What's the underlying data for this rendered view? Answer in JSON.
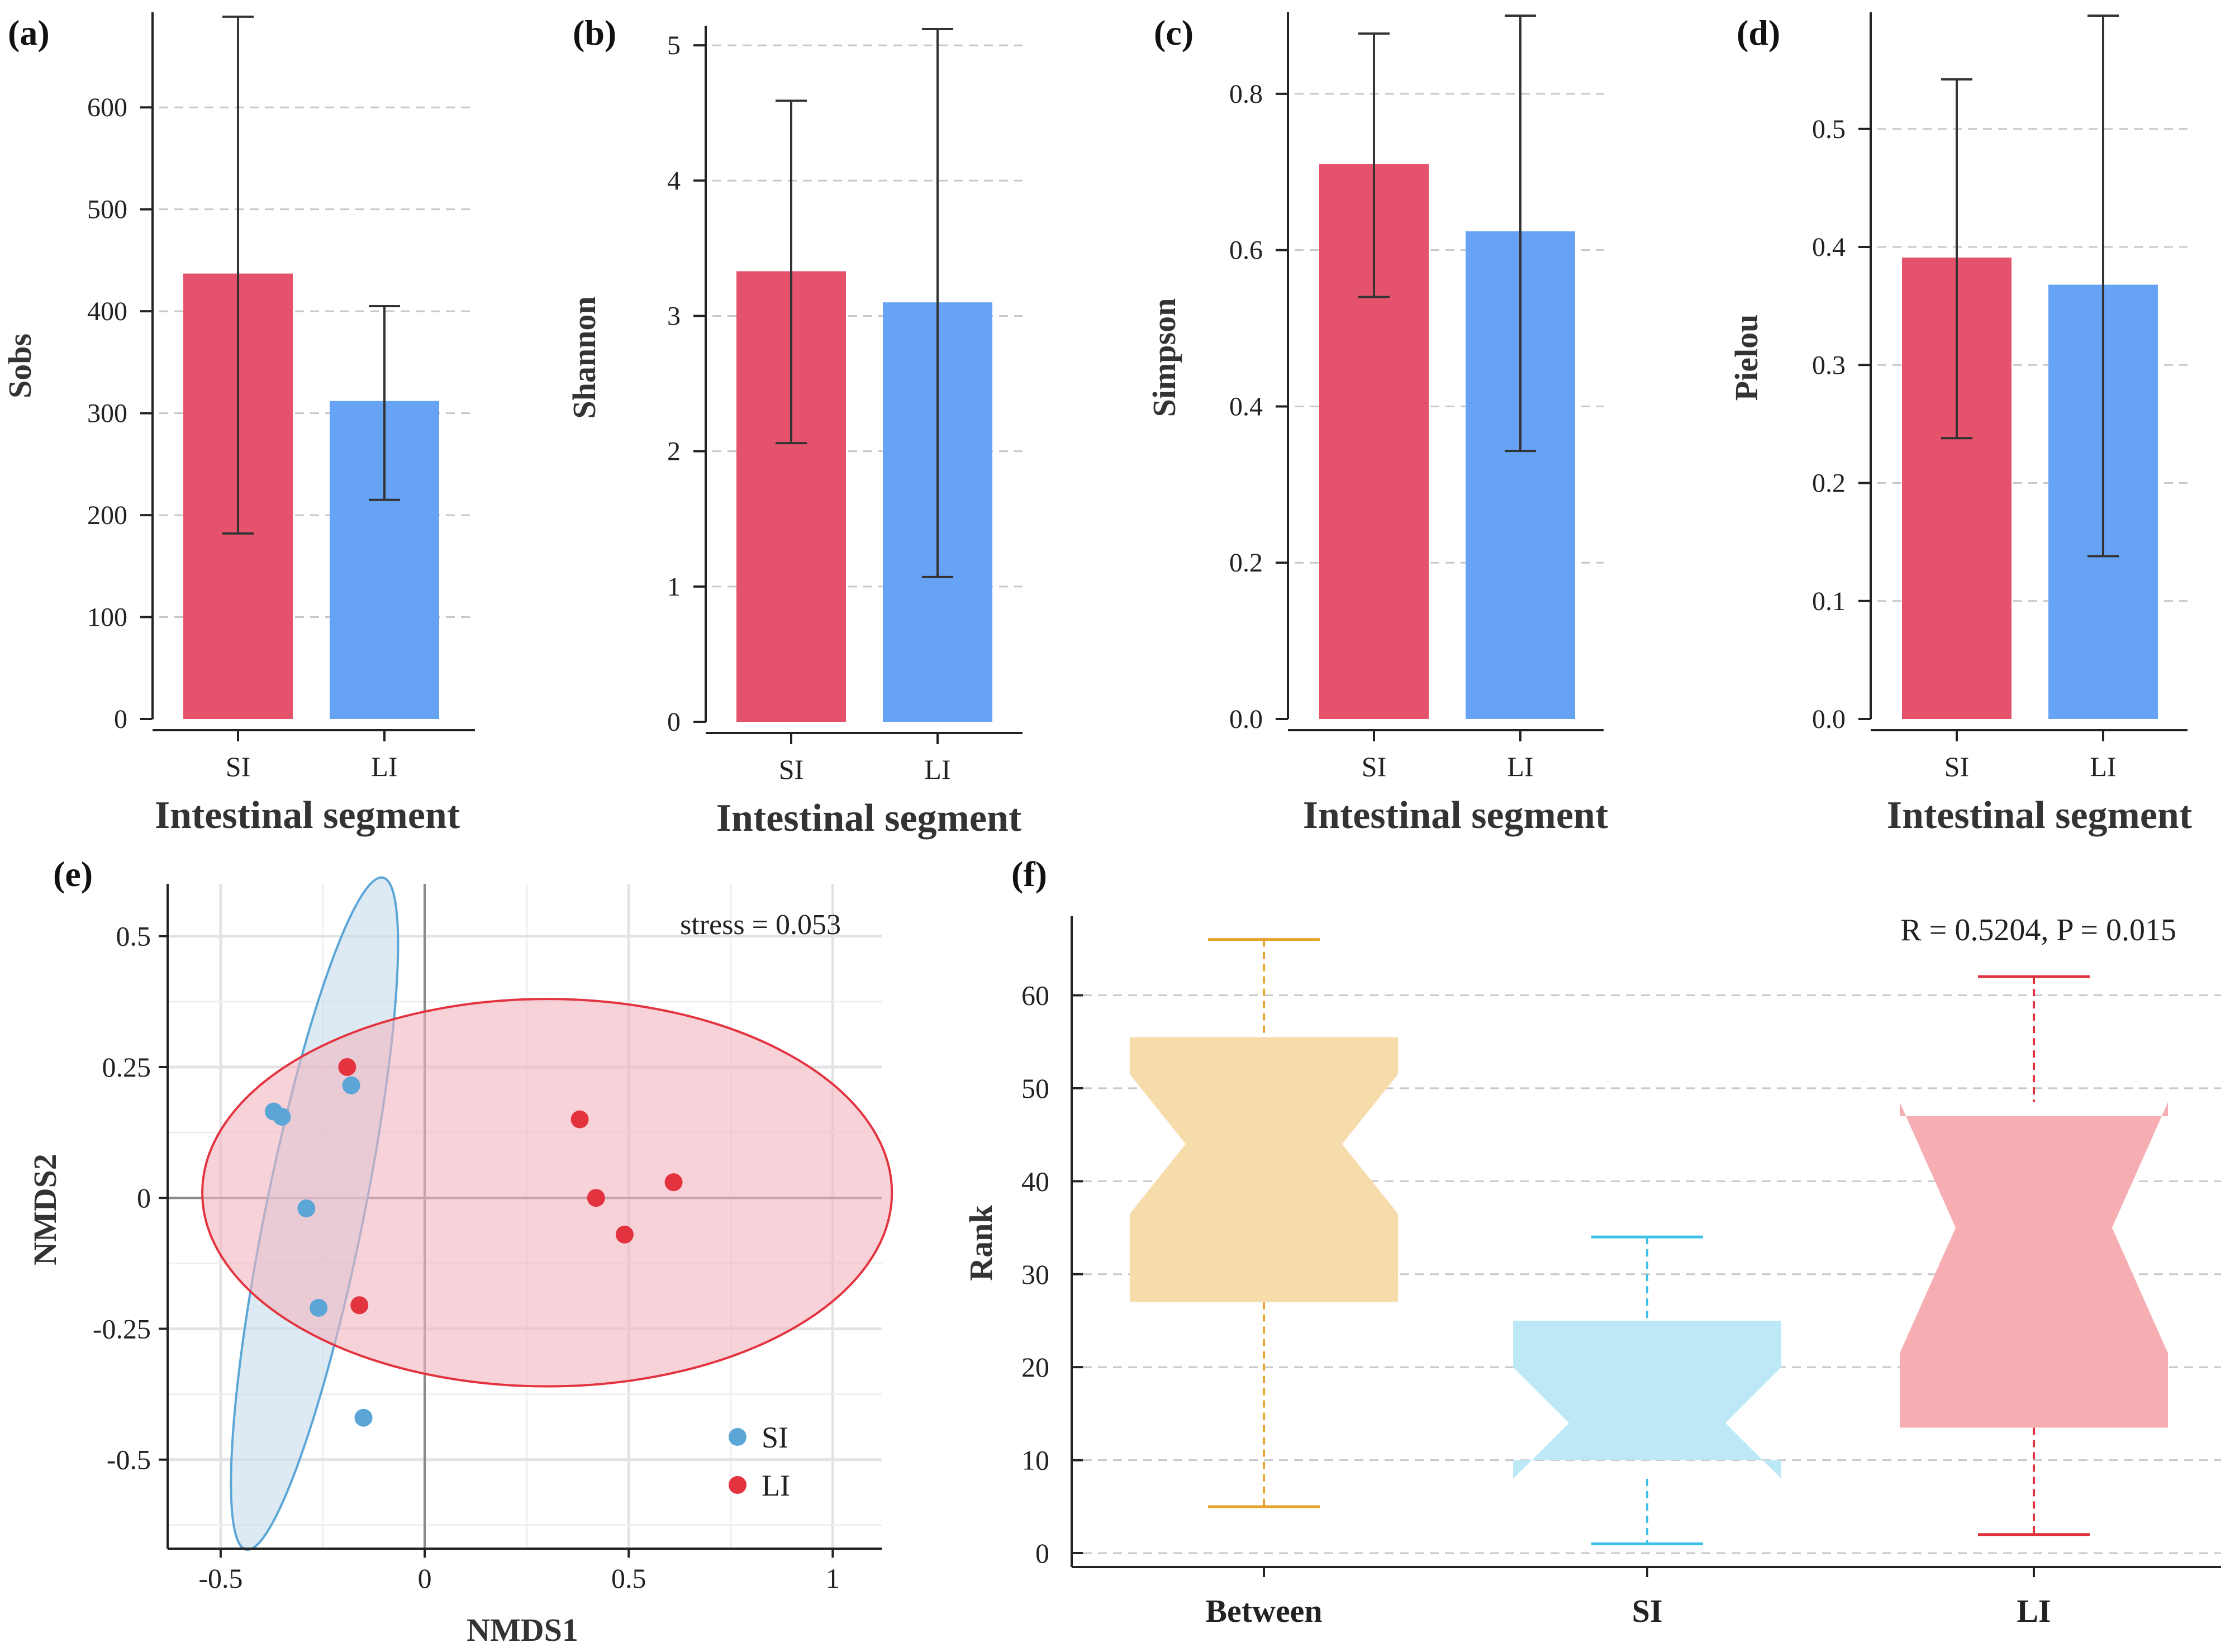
{
  "figure": {
    "panels": {
      "a": {
        "label": "(a)"
      },
      "b": {
        "label": "(b)"
      },
      "c": {
        "label": "(c)"
      },
      "d": {
        "label": "(d)"
      },
      "e": {
        "label": "(e)"
      },
      "f": {
        "label": "(f)"
      }
    }
  },
  "colors": {
    "si_bar": "#e5526b",
    "li_bar": "#66a3f5",
    "si_point": "#5ba6d6",
    "li_point": "#e3333f",
    "si_ellipse_fill": "#c6dcec",
    "li_ellipse_fill": "#f2b6bf",
    "box_between": "#f6dcaa",
    "box_between_line": "#e7a42e",
    "box_si": "#bde9f7",
    "box_si_line": "#3cc0e8",
    "box_li": "#f6aeb3",
    "box_li_line": "#e0323d"
  },
  "chart_data": [
    {
      "id": "a",
      "type": "bar",
      "title": "",
      "categories": [
        "SI",
        "LI"
      ],
      "values": [
        437,
        312
      ],
      "error_high": [
        689,
        405
      ],
      "error_low": [
        182,
        215
      ],
      "xlabel": "Intestinal segment",
      "ylabel": "Sobs",
      "ylim": [
        0,
        690
      ],
      "yticks": [
        0,
        100,
        200,
        300,
        400,
        500,
        600
      ],
      "ytick_labels": [
        "0",
        "100",
        "200",
        "300",
        "400",
        "500",
        "600"
      ],
      "grid": true
    },
    {
      "id": "b",
      "type": "bar",
      "title": "",
      "categories": [
        "SI",
        "LI"
      ],
      "values": [
        3.33,
        3.1
      ],
      "error_high": [
        4.59,
        5.12
      ],
      "error_low": [
        2.06,
        1.07
      ],
      "xlabel": "Intestinal segment",
      "ylabel": "Shannon",
      "ylim": [
        0,
        5.12
      ],
      "yticks": [
        0,
        1,
        2,
        3,
        4,
        5
      ],
      "ytick_labels": [
        "0",
        "1",
        "2",
        "3",
        "4",
        "5"
      ],
      "grid": true
    },
    {
      "id": "c",
      "type": "bar",
      "title": "",
      "categories": [
        "SI",
        "LI"
      ],
      "values": [
        0.71,
        0.624
      ],
      "error_high": [
        0.877,
        0.9
      ],
      "error_low": [
        0.54,
        0.343
      ],
      "xlabel": "Intestinal segment",
      "ylabel": "Simpson",
      "ylim": [
        0,
        0.9
      ],
      "yticks": [
        0,
        0.2,
        0.4,
        0.6,
        0.8
      ],
      "ytick_labels": [
        "0.0",
        "0.2",
        "0.4",
        "0.6",
        "0.8"
      ],
      "grid": true
    },
    {
      "id": "d",
      "type": "bar",
      "title": "",
      "categories": [
        "SI",
        "LI"
      ],
      "values": [
        0.391,
        0.368
      ],
      "error_high": [
        0.542,
        0.596
      ],
      "error_low": [
        0.238,
        0.138
      ],
      "xlabel": "Intestinal segment",
      "ylabel": "Pielou",
      "ylim": [
        0,
        0.596
      ],
      "yticks": [
        0,
        0.1,
        0.2,
        0.3,
        0.4,
        0.5
      ],
      "ytick_labels": [
        "0.0",
        "0.1",
        "0.2",
        "0.3",
        "0.4",
        "0.5"
      ],
      "grid": true
    },
    {
      "id": "e",
      "type": "scatter",
      "title": "",
      "xlabel": "NMDS1",
      "ylabel": "NMDS2",
      "xlim": [
        -0.63,
        1.12
      ],
      "ylim": [
        -0.67,
        0.6
      ],
      "xticks": [
        -0.5,
        0,
        0.5,
        1
      ],
      "xtick_labels": [
        "-0.5",
        "0",
        "0.5",
        "1"
      ],
      "yticks": [
        -0.5,
        -0.25,
        0,
        0.25,
        0.5
      ],
      "ytick_labels": [
        "-0.5",
        "-0.25",
        "0",
        "0.25",
        "0.5"
      ],
      "annotation": "stress = 0.053",
      "series": [
        {
          "name": "SI",
          "x": [
            -0.37,
            -0.35,
            -0.18,
            -0.29,
            -0.26,
            -0.15
          ],
          "y": [
            0.165,
            0.155,
            0.215,
            -0.02,
            -0.21,
            -0.42
          ]
        },
        {
          "name": "LI",
          "x": [
            -0.19,
            0.38,
            0.42,
            0.61,
            0.49,
            -0.16
          ],
          "y": [
            0.25,
            0.15,
            0.0,
            0.03,
            -0.07,
            -0.205
          ]
        }
      ],
      "ellipses": [
        {
          "name": "SI",
          "cx": -0.27,
          "cy": -0.03,
          "rx": 0.655,
          "ry": 0.12,
          "angle_deg": 78.5
        },
        {
          "name": "LI",
          "cx": 0.3,
          "cy": 0.01,
          "rx": 0.845,
          "ry": 0.37,
          "angle_deg": 0
        }
      ],
      "legend": [
        "SI",
        "LI"
      ],
      "legend_position": "bottom-right",
      "grid": true
    },
    {
      "id": "f",
      "type": "box",
      "title": "",
      "categories": [
        "Between",
        "SI",
        "LI"
      ],
      "xlabel": "",
      "ylabel": "Rank",
      "ylim": [
        -1.5,
        68.5
      ],
      "yticks": [
        0,
        10,
        20,
        30,
        40,
        50,
        60
      ],
      "ytick_labels": [
        "0",
        "10",
        "20",
        "30",
        "40",
        "50",
        "60"
      ],
      "annotation": "R = 0.5204, P = 0.015",
      "boxes": [
        {
          "name": "Between",
          "whisker_low": 5,
          "q1": 27,
          "notch_low": 36.5,
          "median": 44,
          "notch_high": 51.5,
          "q3": 55.5,
          "whisker_high": 66
        },
        {
          "name": "SI",
          "whisker_low": 1,
          "q1": 10,
          "notch_low": 8,
          "median": 14,
          "notch_high": 20,
          "q3": 25,
          "whisker_high": 34
        },
        {
          "name": "LI",
          "whisker_low": 2,
          "q1": 13.5,
          "notch_low": 21.5,
          "median": 35,
          "notch_high": 48.5,
          "q3": 47,
          "whisker_high": 62
        }
      ],
      "grid": true
    }
  ]
}
